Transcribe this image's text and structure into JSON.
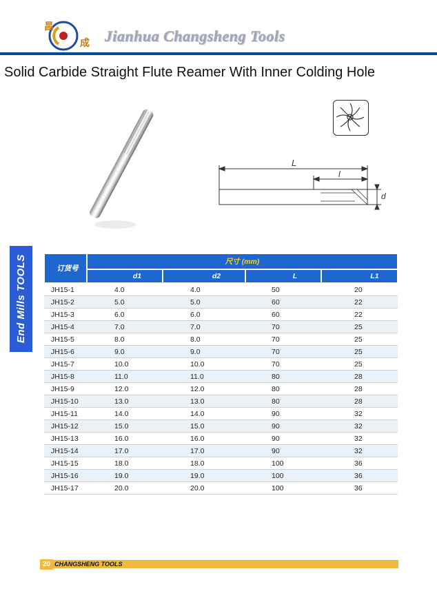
{
  "header": {
    "logo_cn_top": "昌",
    "logo_cn_bottom": "成",
    "brand_text": "Jianhua Changsheng Tools",
    "accent_color": "#004b9b"
  },
  "title": "Solid Carbide Straight Flute Reamer With Inner Colding Hole",
  "diagram": {
    "label_L": "L",
    "label_l": "l",
    "label_d": "d"
  },
  "side_tab": "End Mills TOOLS",
  "table": {
    "code_header": "订货号",
    "dim_header": "尺寸 (mm)",
    "columns": [
      "d1",
      "d2",
      "L",
      "L1"
    ],
    "header_bg": "#1e66d0",
    "header_text_color": "#ffffff",
    "dim_header_color": "#ffd020",
    "row_alt_bg": "#eaf2f8",
    "rows": [
      {
        "code": "JH15-1",
        "d1": "4.0",
        "d2": "4.0",
        "L": "50",
        "L1": "20"
      },
      {
        "code": "JH15-2",
        "d1": "5.0",
        "d2": "5.0",
        "L": "60",
        "L1": "22"
      },
      {
        "code": "JH15-3",
        "d1": "6.0",
        "d2": "6.0",
        "L": "60",
        "L1": "22"
      },
      {
        "code": "JH15-4",
        "d1": "7.0",
        "d2": "7.0",
        "L": "70",
        "L1": "25"
      },
      {
        "code": "JH15-5",
        "d1": "8.0",
        "d2": "8.0",
        "L": "70",
        "L1": "25"
      },
      {
        "code": "JH15-6",
        "d1": "9.0",
        "d2": "9.0",
        "L": "70",
        "L1": "25"
      },
      {
        "code": "JH15-7",
        "d1": "10.0",
        "d2": "10.0",
        "L": "70",
        "L1": "25"
      },
      {
        "code": "JH15-8",
        "d1": "11.0",
        "d2": "11.0",
        "L": "80",
        "L1": "28"
      },
      {
        "code": "JH15-9",
        "d1": "12.0",
        "d2": "12.0",
        "L": "80",
        "L1": "28"
      },
      {
        "code": "JH15-10",
        "d1": "13.0",
        "d2": "13.0",
        "L": "80",
        "L1": "28"
      },
      {
        "code": "JH15-11",
        "d1": "14.0",
        "d2": "14.0",
        "L": "90",
        "L1": "32"
      },
      {
        "code": "JH15-12",
        "d1": "15.0",
        "d2": "15.0",
        "L": "90",
        "L1": "32"
      },
      {
        "code": "JH15-13",
        "d1": "16.0",
        "d2": "16.0",
        "L": "90",
        "L1": "32"
      },
      {
        "code": "JH15-14",
        "d1": "17.0",
        "d2": "17.0",
        "L": "90",
        "L1": "32"
      },
      {
        "code": "JH15-15",
        "d1": "18.0",
        "d2": "18.0",
        "L": "100",
        "L1": "36"
      },
      {
        "code": "JH15-16",
        "d1": "19.0",
        "d2": "19.0",
        "L": "100",
        "L1": "36"
      },
      {
        "code": "JH15-17",
        "d1": "20.0",
        "d2": "20.0",
        "L": "100",
        "L1": "36"
      }
    ]
  },
  "footer": {
    "page_number": "20",
    "brand": "CHANGSHENG TOOLS",
    "bar_color": "#f0b840"
  }
}
